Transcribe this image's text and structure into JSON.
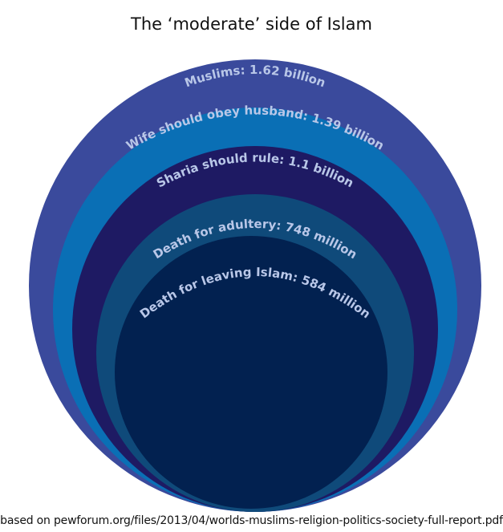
{
  "title": "The ‘moderate’ side of Islam",
  "source": "based on pewforum.org/files/2013/04/worlds-muslims-religion-politics-society-full-report.pdf",
  "label_color": "#b9c7e8",
  "circles": [
    {
      "label": "Muslims: 1.62 billion",
      "value_millions": 1620,
      "color": "#3a4a9c"
    },
    {
      "label": "Wife should obey husband: 1.39 billion",
      "value_millions": 1390,
      "color": "#0a6fb5"
    },
    {
      "label": "Sharia should rule: 1.1 billion",
      "value_millions": 1100,
      "color": "#1e1a63"
    },
    {
      "label": "Death for adultery: 748 million",
      "value_millions": 748,
      "color": "#0f4a7a"
    },
    {
      "label": "Death for leaving Islam: 584 million",
      "value_millions": 584,
      "color": "#022150"
    }
  ]
}
